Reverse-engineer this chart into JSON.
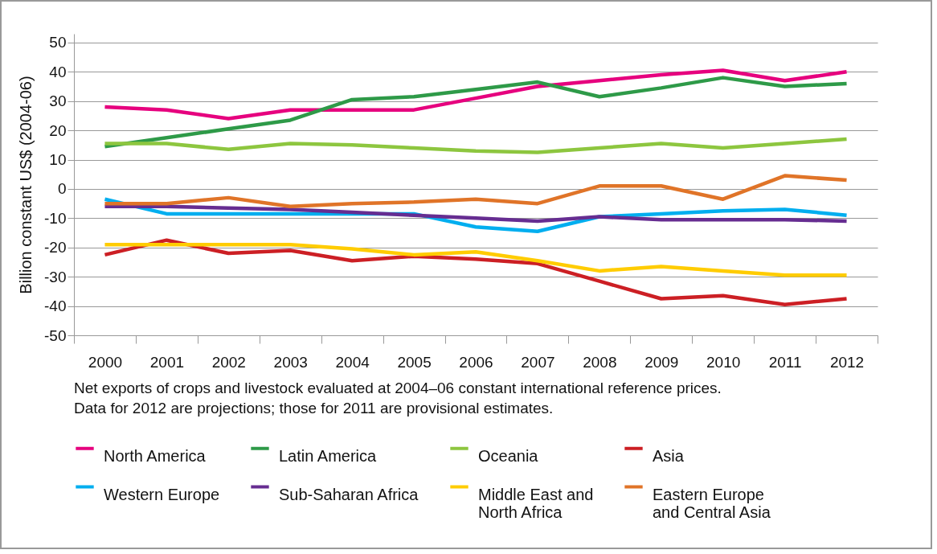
{
  "chart_data": {
    "type": "line",
    "ylabel": "Billion constant US$ (2004-06)",
    "categories": [
      "2000",
      "2001",
      "2002",
      "2003",
      "2004",
      "2005",
      "2006",
      "2007",
      "2008",
      "2009",
      "2010",
      "2011",
      "2012"
    ],
    "ylim": [
      -50,
      53
    ],
    "yticks": [
      -50,
      -40,
      -30,
      -20,
      -10,
      0,
      10,
      20,
      30,
      40,
      50
    ],
    "grid": "y",
    "legend": "bottom",
    "annotations": [
      "Net exports of crops and livestock evaluated at 2004–06 constant international reference prices.",
      "Data for 2012 are projections; those for 2011 are provisional estimates."
    ],
    "series": [
      {
        "name": "North America",
        "color": "#e6007e",
        "values": [
          28,
          27,
          24,
          27,
          27,
          27,
          31,
          35,
          37,
          39,
          40.5,
          37,
          40
        ]
      },
      {
        "name": "Latin America",
        "color": "#2e9a48",
        "values": [
          14.5,
          17.5,
          20.5,
          23.5,
          30.5,
          31.5,
          34,
          36.5,
          31.5,
          34.5,
          38,
          35,
          36
        ]
      },
      {
        "name": "Oceania",
        "color": "#8dc63f",
        "values": [
          15.5,
          15.5,
          13.5,
          15.5,
          15,
          14,
          13,
          12.5,
          14,
          15.5,
          14,
          15.5,
          17
        ]
      },
      {
        "name": "Asia",
        "color": "#cc1f24",
        "values": [
          -22.5,
          -17.5,
          -22,
          -21,
          -24.5,
          -23,
          -24,
          -25.5,
          -31.5,
          -37.5,
          -36.5,
          -39.5,
          -37.5
        ]
      },
      {
        "name": "Western Europe",
        "color": "#00aeef",
        "values": [
          -3.5,
          -8.5,
          -8.5,
          -8.5,
          -8.5,
          -8.5,
          -13,
          -14.5,
          -9.5,
          -8.5,
          -7.5,
          -7,
          -9
        ]
      },
      {
        "name": "Sub-Saharan Africa",
        "color": "#662d91",
        "values": [
          -6,
          -6,
          -6.5,
          -7,
          -8,
          -9,
          -10,
          -11,
          -9.5,
          -10.5,
          -10.5,
          -10.5,
          -11
        ]
      },
      {
        "name": "Middle East and North Africa",
        "color": "#ffcc00",
        "values": [
          -19,
          -19,
          -19,
          -19,
          -20.5,
          -22.5,
          -21.5,
          -24.5,
          -28,
          -26.5,
          -28,
          -29.5,
          -29.5
        ]
      },
      {
        "name": "Eastern Europe and Central Asia",
        "color": "#e07428",
        "values": [
          -5,
          -5,
          -3,
          -6,
          -5,
          -4.5,
          -3.5,
          -5,
          1,
          1,
          -3.5,
          4.5,
          3
        ]
      }
    ]
  }
}
